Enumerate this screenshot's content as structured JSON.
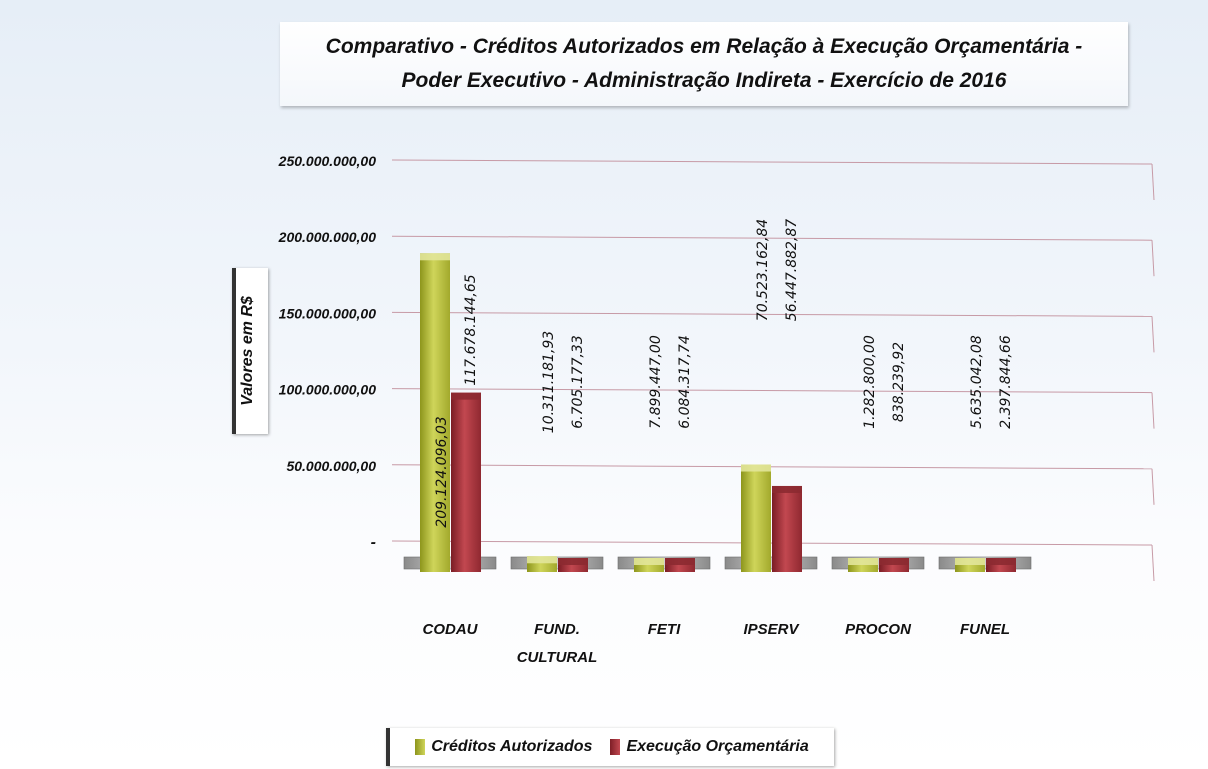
{
  "chart_data": {
    "type": "bar",
    "title": "Comparativo - Créditos Autorizados em Relação à Execução Orçamentária - Poder Executivo - Administração Indireta - Exercício de 2016",
    "xlabel": "",
    "ylabel": "Valores em R$",
    "ylim": [
      0,
      250000000
    ],
    "y_ticks": [
      0,
      50000000,
      100000000,
      150000000,
      200000000,
      250000000
    ],
    "y_tick_labels": [
      "-",
      "50.000.000,00",
      "100.000.000,00",
      "150.000.000,00",
      "200.000.000,00",
      "250.000.000,00"
    ],
    "grid": true,
    "legend_position": "bottom",
    "categories": [
      "CODAU",
      "FUND. CULTURAL",
      "FETI",
      "IPSERV",
      "PROCON",
      "FUNEL"
    ],
    "series": [
      {
        "name": "Créditos Autorizados",
        "color": "#b5bd3a",
        "values": [
          209124096.03,
          10311181.93,
          7899447.0,
          70523162.84,
          1282800.0,
          5635042.08
        ],
        "value_labels": [
          "209.124.096,03",
          "10.311.181,93",
          "7.899.447,00",
          "70.523.162,84",
          "1.282.800,00",
          "5.635.042,08"
        ]
      },
      {
        "name": "Execução Orçamentária",
        "color": "#a8313a",
        "values": [
          117678144.65,
          6705177.33,
          6084317.74,
          56447882.87,
          838239.92,
          2397844.66
        ],
        "value_labels": [
          "117.678.144,65",
          "6.705.177,33",
          "6.084.317,74",
          "56.447.882,87",
          "838.239,92",
          "2.397.844,66"
        ]
      }
    ]
  }
}
